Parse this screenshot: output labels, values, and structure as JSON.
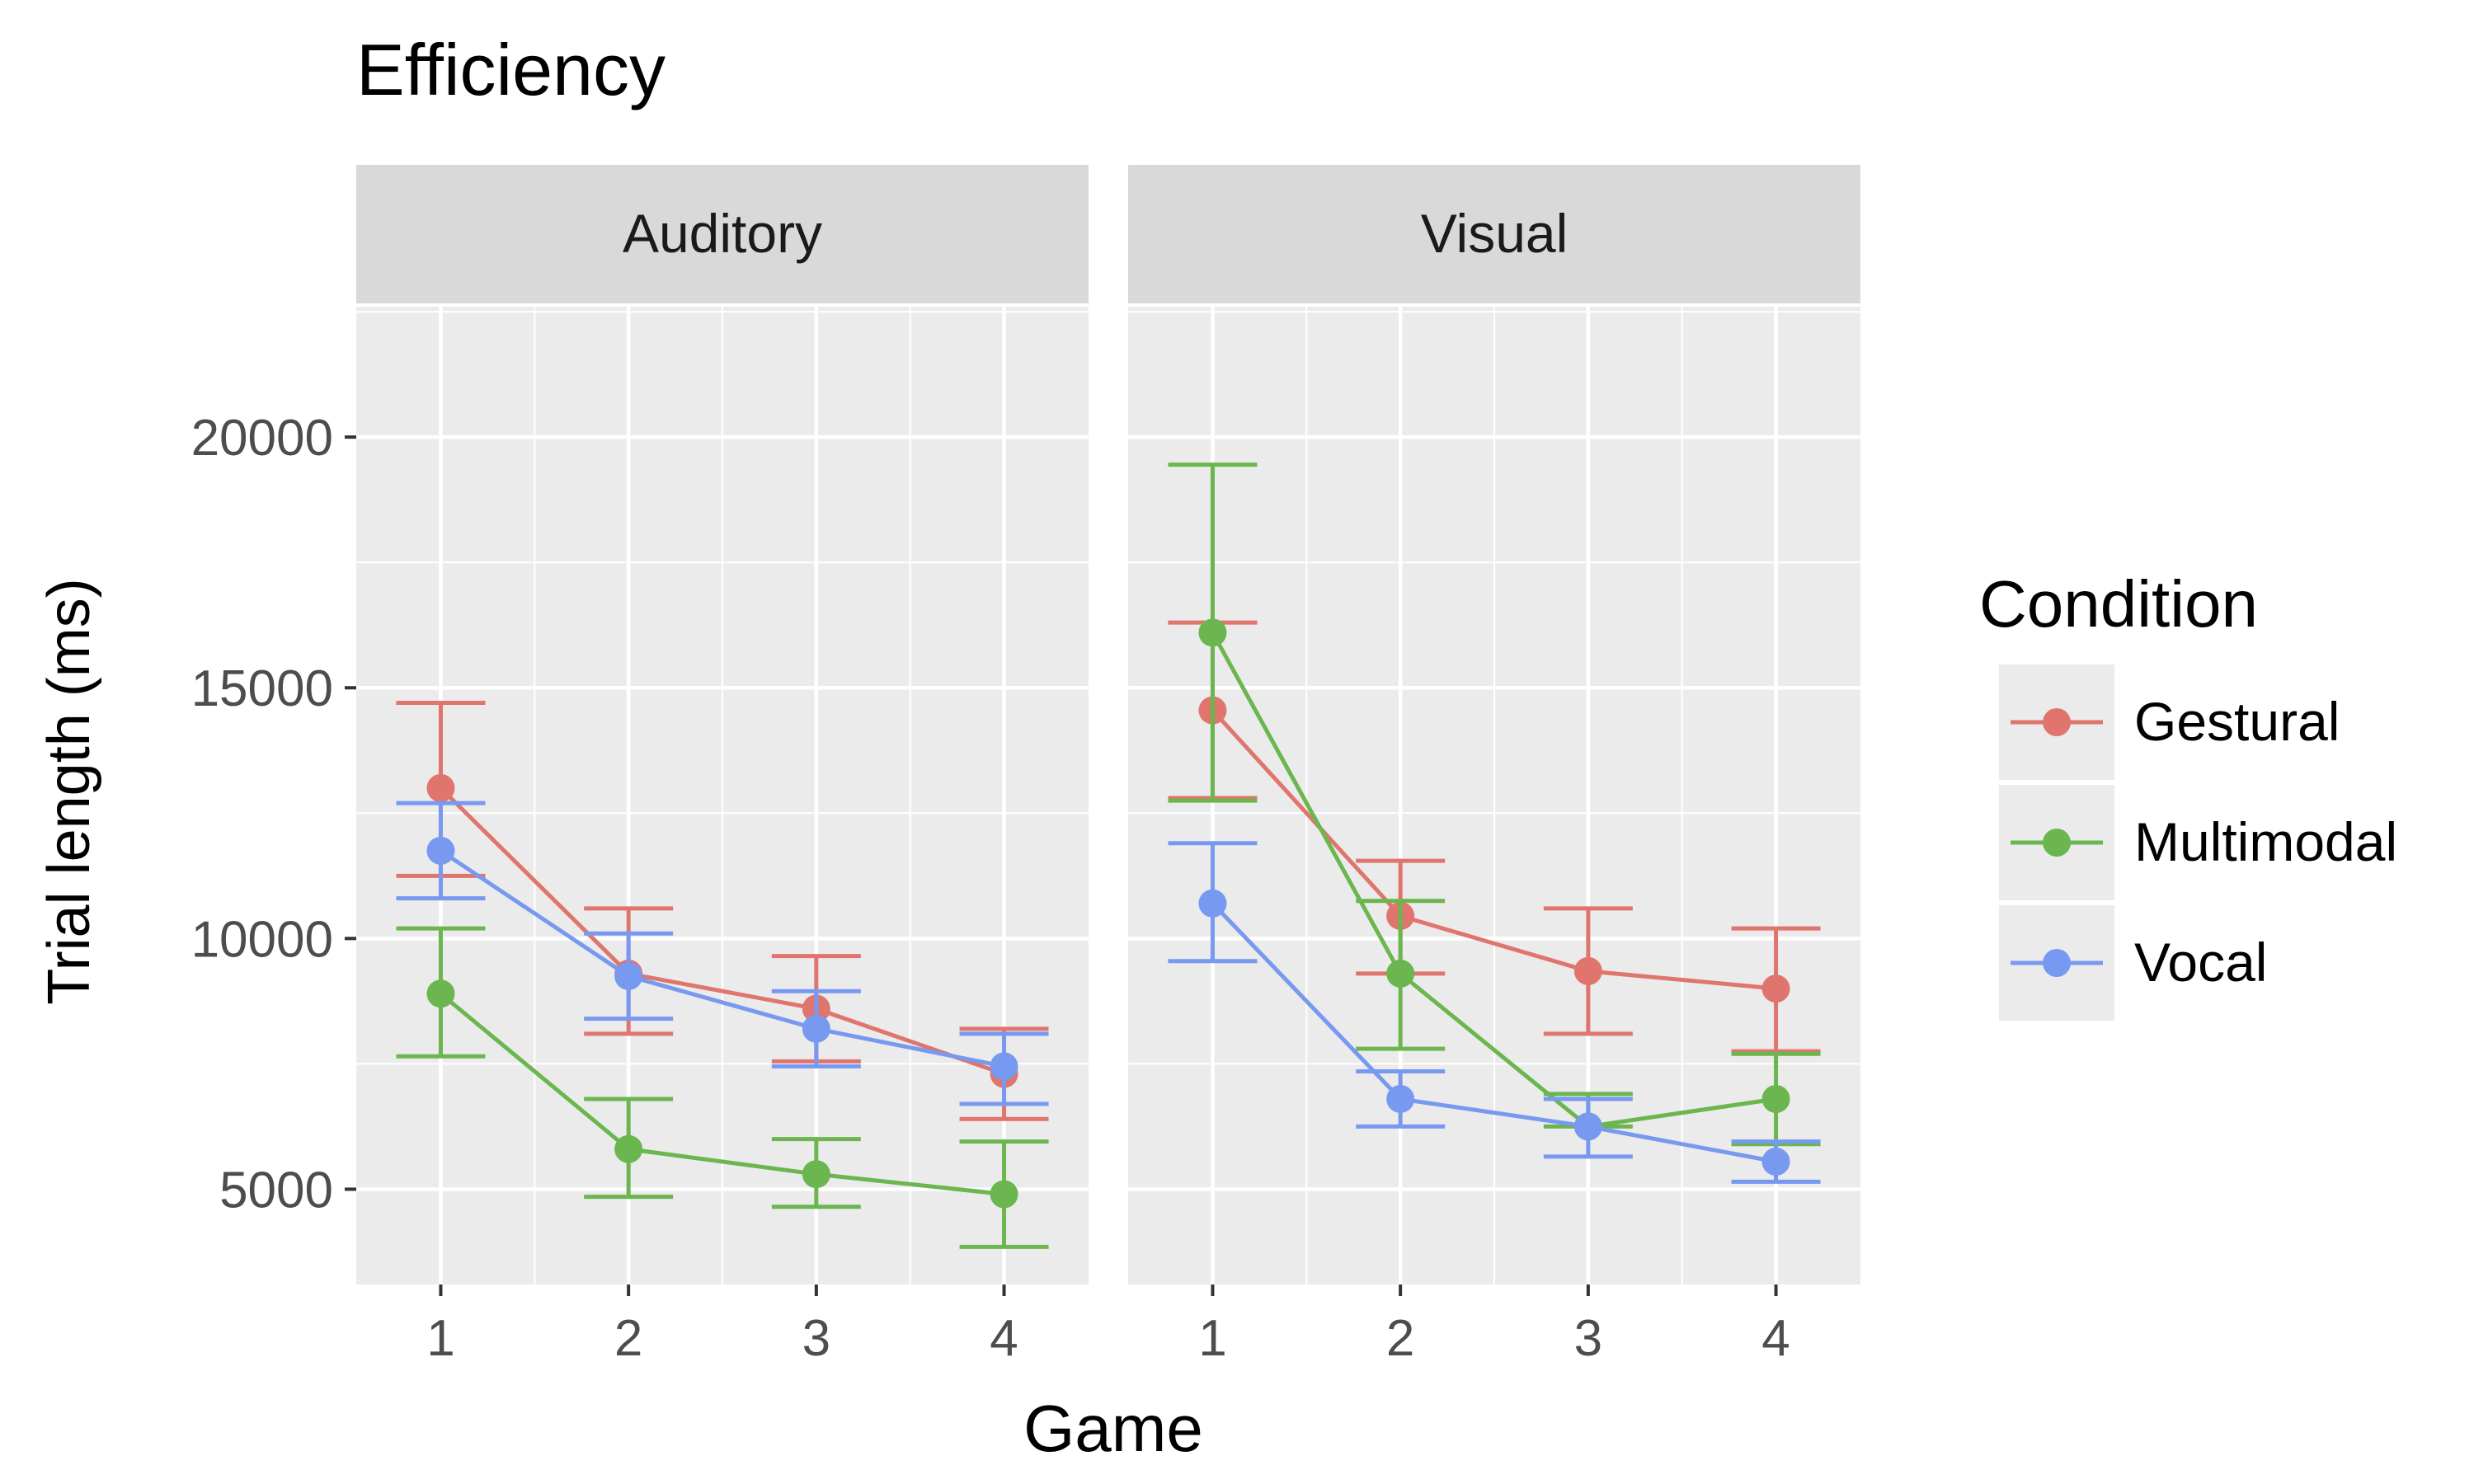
{
  "chart_data": {
    "type": "line",
    "title": "Efficiency",
    "xlabel": "Game",
    "ylabel": "Trial length (ms)",
    "x": [
      1,
      2,
      3,
      4
    ],
    "x_tick_labels": [
      "1",
      "2",
      "3",
      "4"
    ],
    "y_ticks": [
      5000,
      10000,
      15000,
      20000
    ],
    "y_tick_labels": [
      "5000",
      "10000",
      "15000",
      "20000"
    ],
    "ylim": [
      3100,
      22600
    ],
    "xlim": [
      0.55,
      4.45
    ],
    "grid": true,
    "legend": {
      "title": "Condition",
      "position": "right"
    },
    "series_colors": {
      "Gestural": "#E0756E",
      "Multimodal": "#6BB64F",
      "Vocal": "#7899F0"
    },
    "panels": [
      {
        "label": "Auditory",
        "series": [
          {
            "name": "Gestural",
            "values": [
              13000,
              9300,
              8600,
              7300
            ],
            "lower": [
              11250,
              8100,
              7550,
              6400
            ],
            "upper": [
              14700,
              10600,
              9650,
              8200
            ]
          },
          {
            "name": "Multimodal",
            "values": [
              8900,
              5800,
              5300,
              4900
            ],
            "lower": [
              7650,
              4850,
              4650,
              3850
            ],
            "upper": [
              10200,
              6800,
              6000,
              5950
            ]
          },
          {
            "name": "Vocal",
            "values": [
              11750,
              9250,
              8200,
              7450
            ],
            "lower": [
              10800,
              8400,
              7450,
              6700
            ],
            "upper": [
              12700,
              10100,
              8950,
              8100
            ]
          }
        ]
      },
      {
        "label": "Visual",
        "series": [
          {
            "name": "Gestural",
            "values": [
              14550,
              10450,
              9350,
              9000
            ],
            "lower": [
              12800,
              9300,
              8100,
              7750
            ],
            "upper": [
              16300,
              11550,
              10600,
              10200
            ]
          },
          {
            "name": "Multimodal",
            "values": [
              16100,
              9300,
              6250,
              6800
            ],
            "lower": [
              12750,
              7800,
              6250,
              5900
            ],
            "upper": [
              19450,
              10750,
              6900,
              7700
            ]
          },
          {
            "name": "Vocal",
            "values": [
              10700,
              6800,
              6250,
              5550
            ],
            "lower": [
              9550,
              6250,
              5650,
              5150
            ],
            "upper": [
              11900,
              7350,
              6800,
              5950
            ]
          }
        ]
      }
    ]
  }
}
